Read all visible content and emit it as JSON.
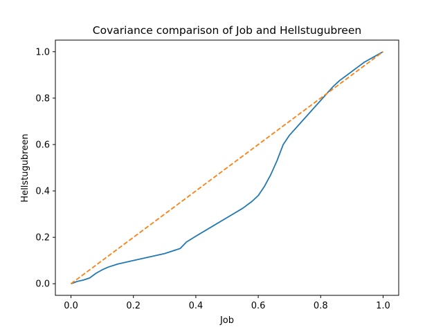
{
  "chart_data": {
    "type": "line",
    "title": "Covariance comparison of Job and Hellstugubreen",
    "xlabel": "Job",
    "ylabel": "Hellstugubreen",
    "xlim": [
      -0.05,
      1.05
    ],
    "ylim": [
      -0.05,
      1.05
    ],
    "xticks": [
      0.0,
      0.2,
      0.4,
      0.6,
      0.8,
      1.0
    ],
    "xtick_labels": [
      "0.0",
      "0.2",
      "0.4",
      "0.6",
      "0.8",
      "1.0"
    ],
    "yticks": [
      0.0,
      0.2,
      0.4,
      0.6,
      0.8,
      1.0
    ],
    "ytick_labels": [
      "0.0",
      "0.2",
      "0.4",
      "0.6",
      "0.8",
      "1.0"
    ],
    "grid": false,
    "legend": "none",
    "series": [
      {
        "color": "#1f77b4",
        "style": "solid",
        "x": [
          0.0,
          0.02,
          0.04,
          0.06,
          0.08,
          0.1,
          0.12,
          0.15,
          0.2,
          0.25,
          0.3,
          0.35,
          0.37,
          0.4,
          0.45,
          0.5,
          0.55,
          0.58,
          0.6,
          0.62,
          0.64,
          0.66,
          0.68,
          0.7,
          0.72,
          0.74,
          0.76,
          0.78,
          0.8,
          0.82,
          0.84,
          0.86,
          0.88,
          0.9,
          0.92,
          0.94,
          0.96,
          0.98,
          1.0
        ],
        "y": [
          0.0,
          0.01,
          0.016,
          0.025,
          0.045,
          0.06,
          0.072,
          0.085,
          0.1,
          0.115,
          0.13,
          0.152,
          0.18,
          0.205,
          0.245,
          0.285,
          0.325,
          0.355,
          0.38,
          0.42,
          0.47,
          0.53,
          0.6,
          0.64,
          0.67,
          0.7,
          0.73,
          0.76,
          0.79,
          0.82,
          0.85,
          0.875,
          0.895,
          0.915,
          0.935,
          0.955,
          0.97,
          0.985,
          1.0
        ]
      },
      {
        "color": "#ff7f0e",
        "style": "dashed",
        "x": [
          0.0,
          1.0
        ],
        "y": [
          0.0,
          1.0
        ]
      }
    ]
  }
}
